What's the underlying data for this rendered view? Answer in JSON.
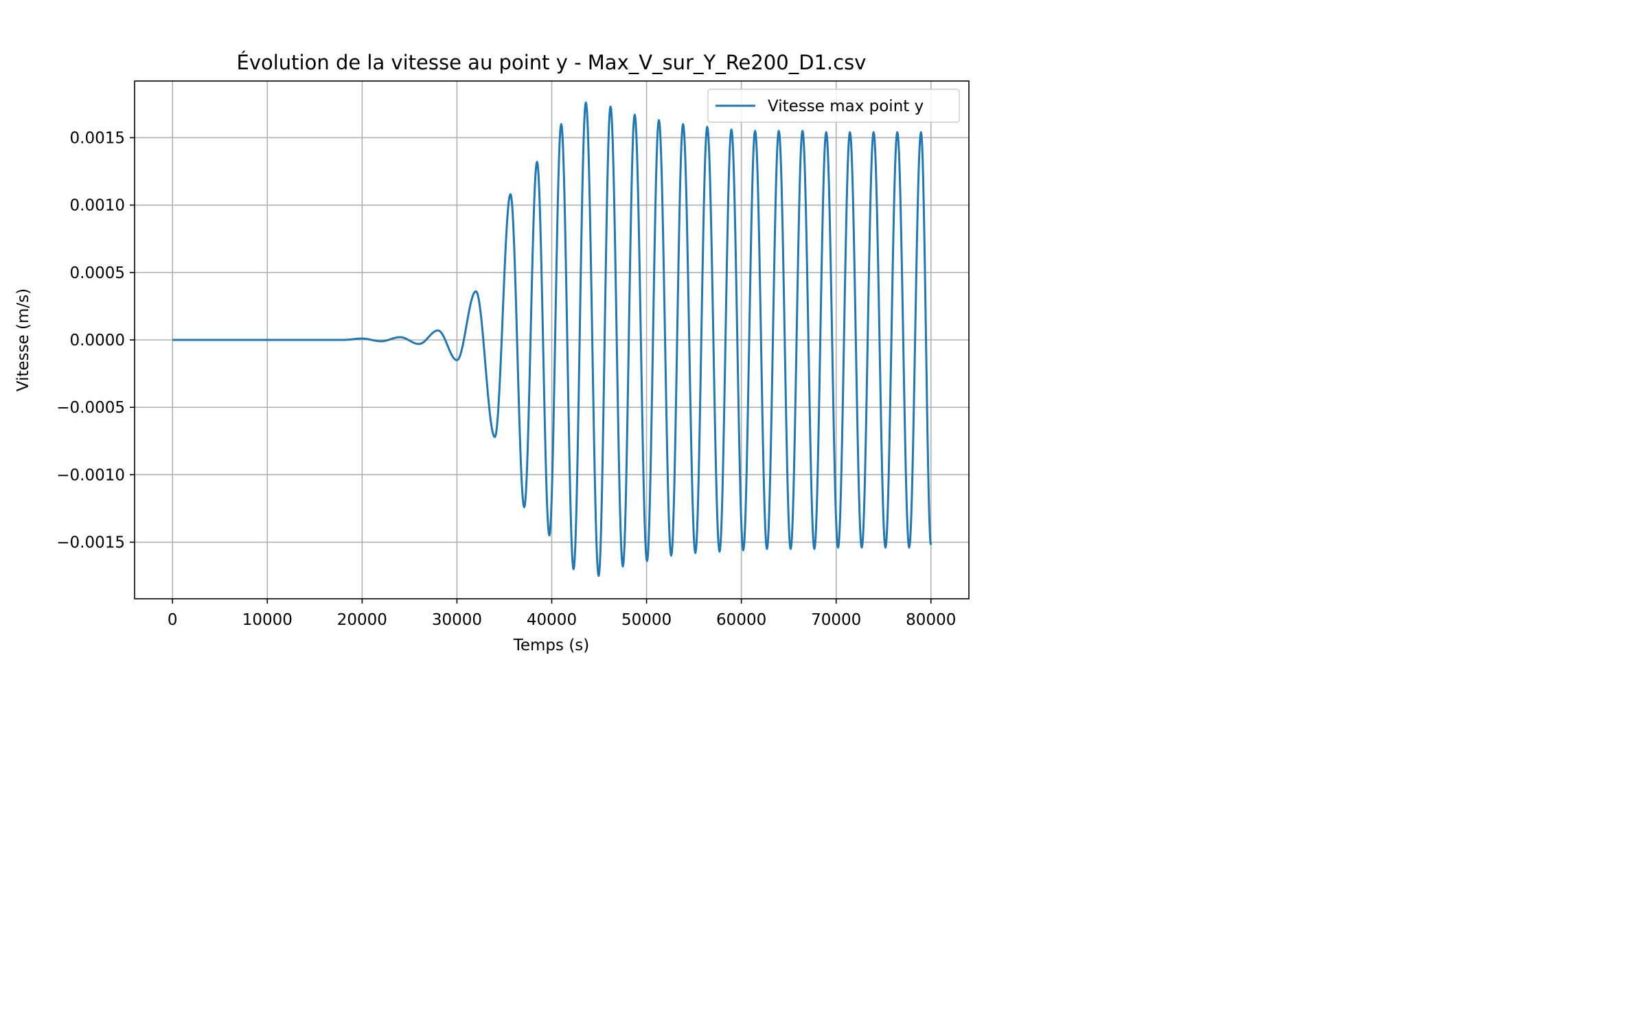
{
  "chart_data": {
    "type": "line",
    "title": "Évolution de la vitesse au point y - Max_V_sur_Y_Re200_D1.csv",
    "xlabel": "Temps (s)",
    "ylabel": "Vitesse (m/s)",
    "xlim": [
      -4000,
      84000
    ],
    "ylim": [
      -0.00192,
      0.00192
    ],
    "xticks": [
      0,
      10000,
      20000,
      30000,
      40000,
      50000,
      60000,
      70000,
      80000
    ],
    "xtick_labels": [
      "0",
      "10000",
      "20000",
      "30000",
      "40000",
      "50000",
      "60000",
      "70000",
      "80000"
    ],
    "yticks": [
      -0.0015,
      -0.001,
      -0.0005,
      0.0,
      0.0005,
      0.001,
      0.0015
    ],
    "ytick_labels": [
      "−0.0015",
      "−0.0010",
      "−0.0005",
      "0.0000",
      "0.0005",
      "0.0010",
      "0.0015"
    ],
    "grid": true,
    "legend": {
      "position": "upper-right",
      "entries": [
        "Vitesse max point y"
      ]
    },
    "series": [
      {
        "name": "Vitesse max point y",
        "color": "#1f77b4",
        "x": [
          0,
          18000,
          20000,
          22000,
          24000,
          26000,
          28000,
          30000,
          32000,
          34000,
          35650,
          37100,
          38450,
          39750,
          41000,
          42300,
          43600,
          44950,
          46200,
          47500,
          48750,
          50050,
          51300,
          52600,
          53850,
          55150,
          56400,
          57700,
          58950,
          60200,
          61450,
          62700,
          63950,
          65200,
          66450,
          67700,
          68950,
          70200,
          71450,
          72700,
          73950,
          75200,
          76450,
          77700,
          78950,
          80000
        ],
        "y": [
          0.0,
          0.0,
          1e-05,
          -1e-05,
          2e-05,
          -3e-05,
          7e-05,
          -0.00015,
          0.00036,
          -0.00072,
          0.00108,
          -0.00124,
          0.00132,
          -0.00145,
          0.0016,
          -0.0017,
          0.00176,
          -0.00175,
          0.00173,
          -0.00168,
          0.00167,
          -0.00164,
          0.00163,
          -0.0016,
          0.0016,
          -0.00158,
          0.00158,
          -0.00157,
          0.00156,
          -0.00156,
          0.00155,
          -0.00155,
          0.00155,
          -0.00155,
          0.00155,
          -0.00155,
          0.00154,
          -0.00154,
          0.00154,
          -0.00154,
          0.00154,
          -0.00154,
          0.00154,
          -0.00154,
          0.00154,
          -0.00152
        ]
      }
    ]
  }
}
